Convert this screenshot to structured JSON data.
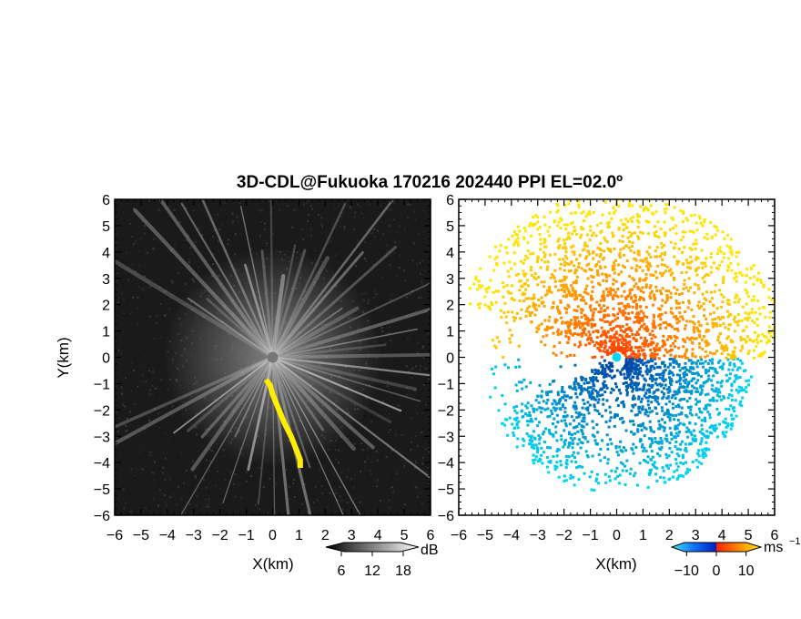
{
  "chart_data": [
    {
      "type": "heatmap",
      "title": "3D-CDL@Fukuoka 170216 202440 PPI EL=02.0º",
      "xlabel": "X(km)",
      "ylabel": "Y(km)",
      "xlim": [
        -6,
        6
      ],
      "ylim": [
        -6,
        6
      ],
      "x_ticks": [
        "−6",
        "−5",
        "−4",
        "−3",
        "−2",
        "−1",
        "0",
        "1",
        "2",
        "3",
        "4",
        "5",
        "6"
      ],
      "y_ticks": [
        "6",
        "5",
        "4",
        "3",
        "2",
        "1",
        "0",
        "−1",
        "−2",
        "−3",
        "−4",
        "−5",
        "−6"
      ],
      "colorbar": {
        "unit": "dB",
        "ticks": [
          "6",
          "12",
          "18"
        ],
        "range": [
          3,
          21
        ],
        "scheme": "grayscale"
      },
      "highlight_color": "#ffee00",
      "background_color": "#1a1a1a"
    },
    {
      "type": "heatmap",
      "xlabel": "X(km)",
      "xlim": [
        -6,
        6
      ],
      "ylim": [
        -6,
        6
      ],
      "x_ticks": [
        "−6",
        "−5",
        "−4",
        "−3",
        "−2",
        "−1",
        "0",
        "1",
        "2",
        "3",
        "4",
        "5",
        "6"
      ],
      "y_ticks": [
        "6",
        "5",
        "4",
        "3",
        "2",
        "1",
        "0",
        "−1",
        "−2",
        "−3",
        "−4",
        "−5",
        "−6"
      ],
      "colorbar": {
        "unit": "ms",
        "unit_exponent": "−1",
        "ticks": [
          "−10",
          "0",
          "10"
        ],
        "range": [
          -15,
          15
        ],
        "scheme": "diverging"
      },
      "colors": {
        "negative_far": "#00e0ff",
        "negative": "#0040e0",
        "positive": "#ff3c00",
        "positive_far": "#ffe600"
      }
    }
  ]
}
